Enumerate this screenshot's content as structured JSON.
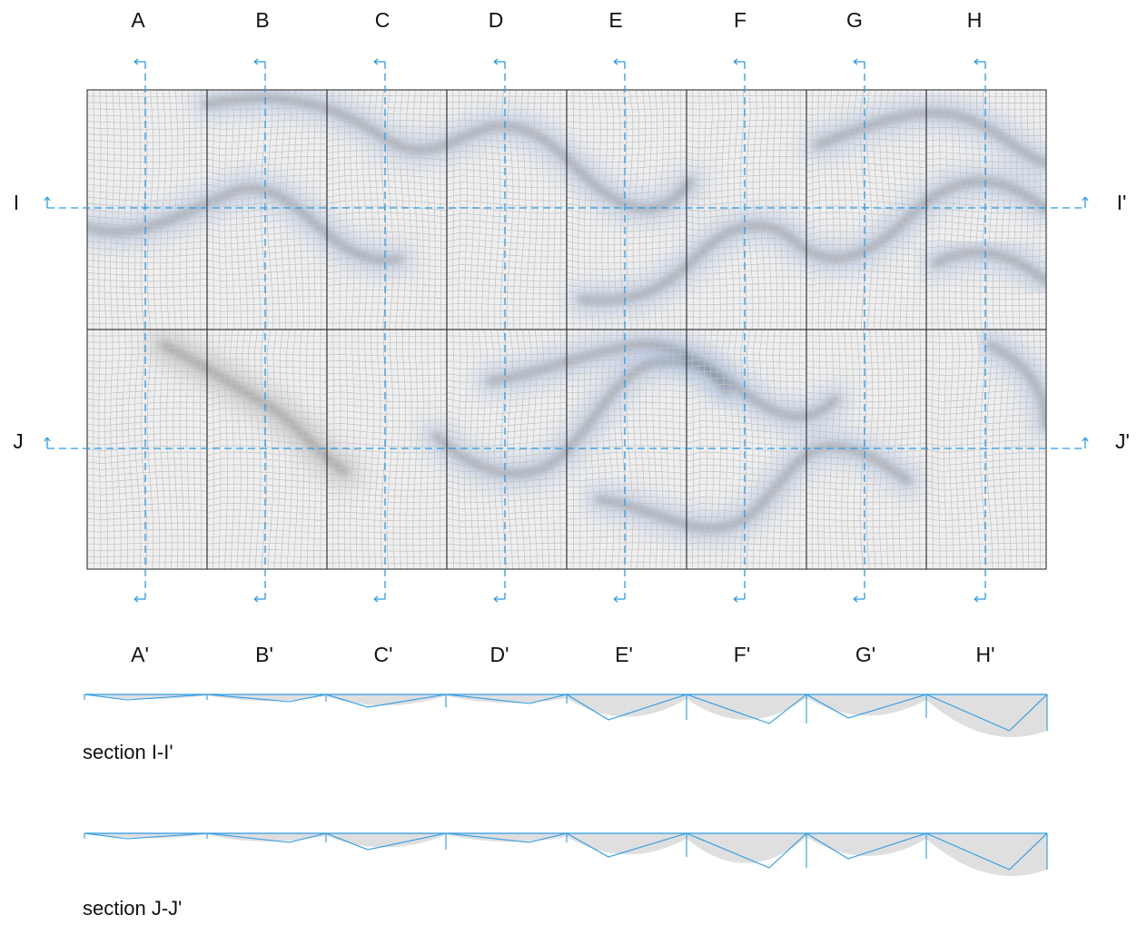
{
  "columns": {
    "labels": [
      "A",
      "B",
      "C",
      "D",
      "E",
      "F",
      "G",
      "H"
    ],
    "prime_labels": [
      "A'",
      "B'",
      "C'",
      "D'",
      "E'",
      "F'",
      "G'",
      "H'"
    ]
  },
  "rows": {
    "I": {
      "label": "I",
      "prime_label": "I'"
    },
    "J": {
      "label": "J",
      "prime_label": "J'"
    }
  },
  "sections": {
    "I": {
      "caption": "section I-I'"
    },
    "J": {
      "caption": "section J-J'"
    }
  },
  "colors": {
    "section_line": "#2a9be6",
    "panel_border": "#333333",
    "grid_line": "#c2c2c2",
    "panel_fill": "#efefef",
    "shadow_blue": "#6f97d8",
    "shadow_gray": "#7a7a7a",
    "profile_fill": "#d9d9d9"
  }
}
